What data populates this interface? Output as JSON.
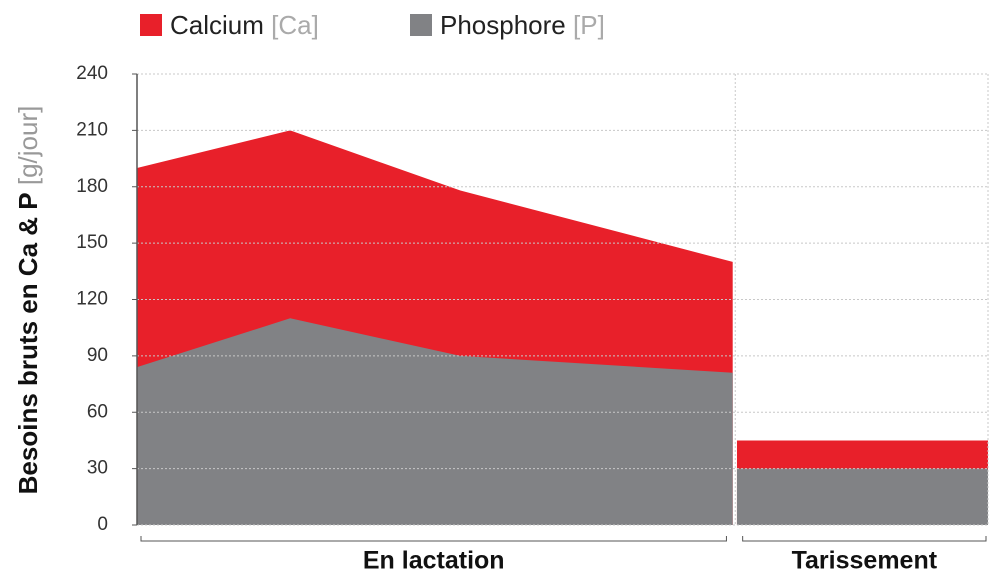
{
  "chart_data": {
    "type": "area",
    "y_label": "Besoins bruts en Ca & P",
    "y_unit": "[g/jour]",
    "x": [
      0,
      18,
      38,
      70,
      70.2,
      70.5,
      100
    ],
    "xlim": [
      0,
      100
    ],
    "series": [
      {
        "name": "Calcium",
        "unit_label": "[Ca]",
        "color": "#e8202a",
        "values": [
          190,
          210,
          178,
          140,
          null,
          45,
          45
        ]
      },
      {
        "name": "Phosphore",
        "unit_label": "[P]",
        "color": "#818285",
        "values": [
          84,
          110,
          90,
          81,
          null,
          30,
          30
        ]
      }
    ],
    "ylim": [
      0,
      240
    ],
    "yticks": [
      0,
      30,
      60,
      90,
      120,
      150,
      180,
      210,
      240
    ],
    "grid": true,
    "separator_x": 70.3,
    "groups": [
      {
        "label": "En lactation",
        "range": [
          0,
          69.5
        ]
      },
      {
        "label": "Tarissement",
        "range": [
          70.7,
          100
        ]
      }
    ]
  }
}
